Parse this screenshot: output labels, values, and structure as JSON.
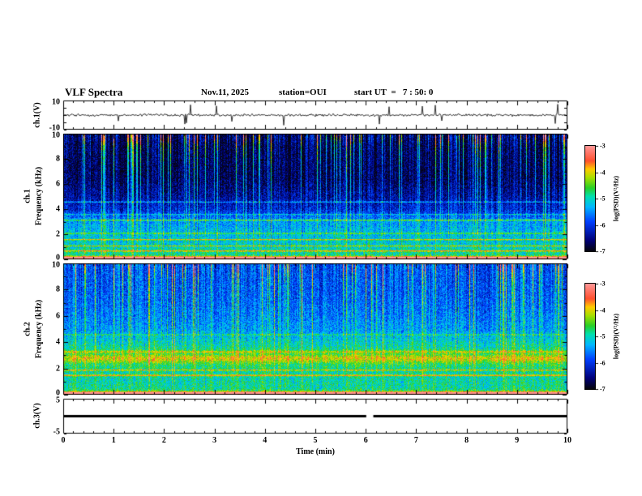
{
  "title": "VLF Spectra",
  "header": {
    "date": "Nov.11, 2025",
    "station": "station=OUI",
    "start_ut": "start UT  =   7 : 50: 0"
  },
  "xaxis": {
    "label": "Time (min)",
    "min": 0,
    "max": 10,
    "ticks": [
      "0",
      "1",
      "2",
      "3",
      "4",
      "5",
      "6",
      "7",
      "8",
      "9",
      "10"
    ]
  },
  "colorbar": {
    "label": "log(PSD)(V²/Hz)",
    "value_range": [
      -7,
      -3
    ],
    "ticks": [
      -3,
      -4,
      -5,
      -6,
      -7
    ]
  },
  "colormap": {
    "stops": [
      [
        0.0,
        "#05050f"
      ],
      [
        0.1,
        "#000078"
      ],
      [
        0.28,
        "#0040ff"
      ],
      [
        0.42,
        "#00b8ff"
      ],
      [
        0.52,
        "#00e0b0"
      ],
      [
        0.6,
        "#28d028"
      ],
      [
        0.7,
        "#a8e000"
      ],
      [
        0.78,
        "#ffcc00"
      ],
      [
        0.86,
        "#ff5030"
      ],
      [
        1.0,
        "#ff9696"
      ]
    ]
  },
  "chart_data": [
    {
      "id": "ch1_waveform",
      "type": "line",
      "ylabel": "ch.1(V)",
      "ylim": [
        -10,
        10
      ],
      "yticks": [
        10,
        -10
      ],
      "xlim": [
        0,
        10
      ],
      "description": "Noisy signal fluctuating around 0 V with sporadic impulsive spikes up to about ±8 V",
      "signal": {
        "baseline": 0,
        "noise_amp": 0.8,
        "spike_prob": 0.02,
        "spike_amp": [
          3,
          8
        ],
        "spike_down_bias": 0.65,
        "seed": 777
      }
    },
    {
      "id": "ch1_spectrogram",
      "type": "heatmap",
      "ylabel_line1": "ch.1",
      "ylabel_line2": "Frequency (kHz)",
      "ylim": [
        0,
        10
      ],
      "yticks": [
        0,
        2,
        4,
        6,
        8,
        10
      ],
      "xlim": [
        0,
        10
      ],
      "value_range": [
        -7,
        -3
      ],
      "description": "VLF spectrogram: strong horizontal emission lines below ~2 kHz, diffuse blue-green power 2-4 kHz, dark background 4-10 kHz crossed by dense vertical sferic streaks reaching -3 near 10 kHz",
      "texture": {
        "seed": 12345,
        "noise": 0.9,
        "base_profile": [
          [
            0,
            -4.1
          ],
          [
            0.4,
            -4.9
          ],
          [
            1,
            -5.1
          ],
          [
            2,
            -5.3
          ],
          [
            3,
            -5.5
          ],
          [
            4,
            -6.2
          ],
          [
            5,
            -6.5
          ],
          [
            6.5,
            -6.8
          ],
          [
            10,
            -6.85
          ]
        ],
        "bands": [
          {
            "f": 0.15,
            "w": 0.1,
            "amp": 2.4
          },
          {
            "f": 0.7,
            "w": 0.06,
            "amp": 1.2
          },
          {
            "f": 1.1,
            "w": 0.05,
            "amp": 1.0
          },
          {
            "f": 1.6,
            "w": 0.05,
            "amp": 1.3
          },
          {
            "f": 2.1,
            "w": 0.06,
            "amp": 0.8
          },
          {
            "f": 3.15,
            "w": 0.06,
            "amp": 1.1
          },
          {
            "f": 3.6,
            "w": 0.05,
            "amp": 0.7
          },
          {
            "f": 4.6,
            "w": 0.05,
            "amp": 1.0
          }
        ],
        "streaks": {
          "density": 0.5,
          "amp_min": 0.7,
          "amp_max": 3.0
        }
      }
    },
    {
      "id": "ch2_spectrogram",
      "type": "heatmap",
      "ylabel_line1": "ch.2",
      "ylabel_line2": "Frequency (kHz)",
      "ylim": [
        0,
        10
      ],
      "yticks": [
        0,
        2,
        4,
        6,
        8,
        10
      ],
      "xlim": [
        0,
        10
      ],
      "value_range": [
        -7,
        -3
      ],
      "description": "Brighter overall than ch.1: cyan-green diffuse power to ~5 kHz, bright band near 2.5-3.5 kHz, emission lines below 2 kHz, vertical sferic streaks throughout",
      "texture": {
        "seed": 24680,
        "noise": 0.9,
        "base_profile": [
          [
            0,
            -4.3
          ],
          [
            0.5,
            -4.9
          ],
          [
            1.5,
            -5.0
          ],
          [
            2.5,
            -4.7
          ],
          [
            3.5,
            -4.9
          ],
          [
            5,
            -5.5
          ],
          [
            7,
            -5.8
          ],
          [
            10,
            -6.0
          ]
        ],
        "bands": [
          {
            "f": 0.15,
            "w": 0.1,
            "amp": 2.2
          },
          {
            "f": 1.5,
            "w": 0.06,
            "amp": 1.3
          },
          {
            "f": 1.9,
            "w": 0.05,
            "amp": 1.0
          },
          {
            "f": 2.8,
            "w": 0.3,
            "amp": 0.7
          },
          {
            "f": 3.3,
            "w": 0.1,
            "amp": 0.7
          },
          {
            "f": 4.6,
            "w": 0.05,
            "amp": 0.6
          }
        ],
        "streaks": {
          "density": 0.55,
          "amp_min": 0.5,
          "amp_max": 2.4
        }
      }
    },
    {
      "id": "ch3_waveform",
      "type": "line",
      "ylabel": "ch.3(V)",
      "ylim": [
        -5,
        5
      ],
      "yticks": [
        5,
        -5
      ],
      "xlim": [
        0,
        10
      ],
      "description": "Constant 0 V line for the whole interval with a short dropout near 6.1 min",
      "signal": {
        "constant": 0,
        "gap_interval_min": [
          6.01,
          6.15
        ],
        "line_width": 3
      }
    }
  ]
}
